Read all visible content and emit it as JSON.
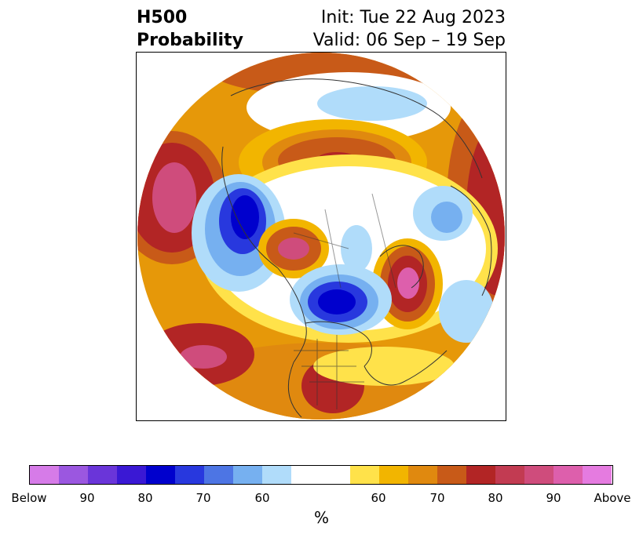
{
  "title": {
    "left_line1": "H500",
    "left_line2": "Probability",
    "right_line1": "Init: Tue 22 Aug 2023",
    "right_line2": "Valid: 06 Sep – 19 Sep"
  },
  "colorbar": {
    "unit": "%",
    "colors": [
      "#d67be8",
      "#9b57e0",
      "#6a35d9",
      "#3a18d4",
      "#0000cd",
      "#2838de",
      "#4d75e4",
      "#76b0f0",
      "#b0dcfa",
      "#ffffff",
      "#ffe24a",
      "#f2b500",
      "#e0890f",
      "#c85a18",
      "#b22525",
      "#c23b52",
      "#cf4c7c",
      "#dd5fac",
      "#e57be0"
    ],
    "labels": [
      "Below",
      "90",
      "80",
      "70",
      "60",
      "60",
      "70",
      "80",
      "90",
      "Above"
    ]
  },
  "map": {
    "projection": "north-polar-stereographic",
    "palette": {
      "above_60": "#f2b500",
      "above_70": "#e0890f",
      "above_80": "#c85a18",
      "above_90": "#b22525",
      "above_max": "#cf4c7c",
      "below_60": "#b0dcfa",
      "below_70": "#76b0f0",
      "below_80": "#2838de",
      "below_90": "#0000cd",
      "coast": "#333333"
    }
  }
}
